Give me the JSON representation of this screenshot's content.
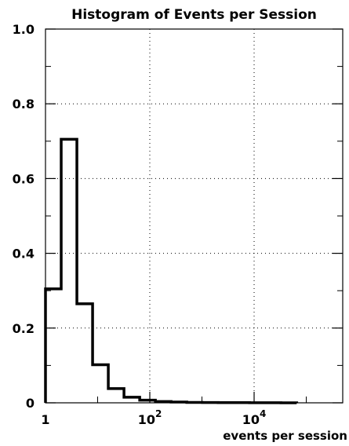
{
  "chart_data": {
    "type": "bar",
    "title": "Histogram of Events per Session",
    "xlabel": "events per session",
    "ylabel": "",
    "x_scale": "log",
    "x_range": [
      1,
      500000
    ],
    "ylim": [
      0,
      1.0
    ],
    "grid": true,
    "x_ticks": [
      {
        "value": 1,
        "base": "1",
        "exp": ""
      },
      {
        "value": 100,
        "base": "10",
        "exp": "2"
      },
      {
        "value": 10000,
        "base": "10",
        "exp": "4"
      }
    ],
    "y_ticks": [
      {
        "value": 0,
        "label": "0"
      },
      {
        "value": 0.2,
        "label": "0.2"
      },
      {
        "value": 0.4,
        "label": "0.4"
      },
      {
        "value": 0.6,
        "label": "0.6"
      },
      {
        "value": 0.8,
        "label": "0.8"
      },
      {
        "value": 1.0,
        "label": "1.0"
      }
    ],
    "bin_edges": [
      1,
      2,
      4,
      8,
      16,
      32,
      64,
      128,
      256,
      512,
      1024,
      2048,
      4096,
      8192,
      16384,
      32768,
      65536
    ],
    "values": [
      0.305,
      0.705,
      0.265,
      0.102,
      0.038,
      0.015,
      0.007,
      0.0035,
      0.002,
      0.001,
      0.0008,
      0.0005,
      0.0004,
      0.0003,
      0.0002,
      0.0001
    ]
  }
}
